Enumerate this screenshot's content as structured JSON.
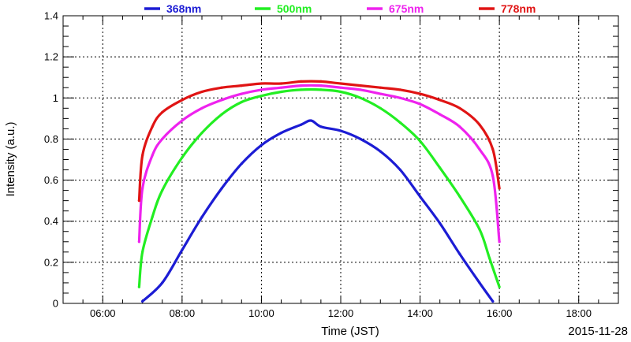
{
  "chart_data": {
    "type": "line",
    "xlabel": "Time (JST)",
    "ylabel": "Intensity (a.u.)",
    "date_label": "2015-11-28",
    "x_ticks": [
      "06:00",
      "08:00",
      "10:00",
      "12:00",
      "14:00",
      "16:00",
      "18:00"
    ],
    "y_ticks": [
      "0",
      "0.2",
      "0.4",
      "0.6",
      "0.8",
      "1",
      "1.2",
      "1.4"
    ],
    "xlim": [
      "05:00",
      "19:00"
    ],
    "ylim": [
      0,
      1.4
    ],
    "grid": true,
    "legend_position": "top",
    "series": [
      {
        "name": "368nm",
        "color": "#1c1cd4",
        "x": [
          "07:00",
          "07:30",
          "08:00",
          "08:30",
          "09:00",
          "09:30",
          "10:00",
          "10:30",
          "11:00",
          "11:15",
          "11:30",
          "12:00",
          "12:30",
          "13:00",
          "13:30",
          "14:00",
          "14:30",
          "15:00",
          "15:30",
          "15:50"
        ],
        "y": [
          0.01,
          0.1,
          0.26,
          0.42,
          0.56,
          0.68,
          0.77,
          0.83,
          0.87,
          0.89,
          0.86,
          0.84,
          0.8,
          0.74,
          0.65,
          0.52,
          0.39,
          0.24,
          0.1,
          0.01
        ]
      },
      {
        "name": "500nm",
        "color": "#22ee22",
        "x": [
          "06:55",
          "07:00",
          "07:15",
          "07:30",
          "08:00",
          "08:30",
          "09:00",
          "09:30",
          "10:00",
          "10:30",
          "11:00",
          "11:30",
          "12:00",
          "12:30",
          "13:00",
          "13:30",
          "14:00",
          "14:30",
          "15:00",
          "15:30",
          "15:45",
          "16:00"
        ],
        "y": [
          0.08,
          0.25,
          0.42,
          0.55,
          0.71,
          0.83,
          0.92,
          0.98,
          1.01,
          1.03,
          1.04,
          1.04,
          1.03,
          1.0,
          0.95,
          0.88,
          0.79,
          0.66,
          0.52,
          0.36,
          0.22,
          0.08
        ]
      },
      {
        "name": "675nm",
        "color": "#ee22ee",
        "x": [
          "06:55",
          "07:00",
          "07:15",
          "07:30",
          "08:00",
          "08:30",
          "09:00",
          "09:30",
          "10:00",
          "10:30",
          "11:00",
          "11:30",
          "12:00",
          "12:30",
          "13:00",
          "13:30",
          "14:00",
          "14:30",
          "15:00",
          "15:30",
          "15:50",
          "16:00"
        ],
        "y": [
          0.3,
          0.56,
          0.72,
          0.8,
          0.89,
          0.95,
          0.99,
          1.02,
          1.04,
          1.05,
          1.06,
          1.06,
          1.05,
          1.04,
          1.02,
          1.0,
          0.97,
          0.92,
          0.86,
          0.75,
          0.62,
          0.3
        ]
      },
      {
        "name": "778nm",
        "color": "#e01414",
        "x": [
          "06:55",
          "07:00",
          "07:15",
          "07:30",
          "08:00",
          "08:30",
          "09:00",
          "09:30",
          "10:00",
          "10:30",
          "11:00",
          "11:30",
          "12:00",
          "12:30",
          "13:00",
          "13:30",
          "14:00",
          "14:30",
          "15:00",
          "15:30",
          "15:50",
          "16:00"
        ],
        "y": [
          0.5,
          0.72,
          0.86,
          0.93,
          0.99,
          1.03,
          1.05,
          1.06,
          1.07,
          1.07,
          1.08,
          1.08,
          1.07,
          1.06,
          1.05,
          1.04,
          1.02,
          0.99,
          0.95,
          0.87,
          0.75,
          0.56
        ]
      }
    ]
  }
}
